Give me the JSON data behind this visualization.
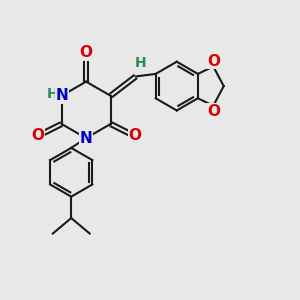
{
  "bg_color": "#e8e8e8",
  "bond_color": "#1a1a1a",
  "bond_width": 1.5,
  "dbl_sep": 0.07,
  "atom_colors": {
    "N": "#0000cc",
    "O": "#dd0000",
    "H": "#2e8b57",
    "C": "#1a1a1a"
  }
}
